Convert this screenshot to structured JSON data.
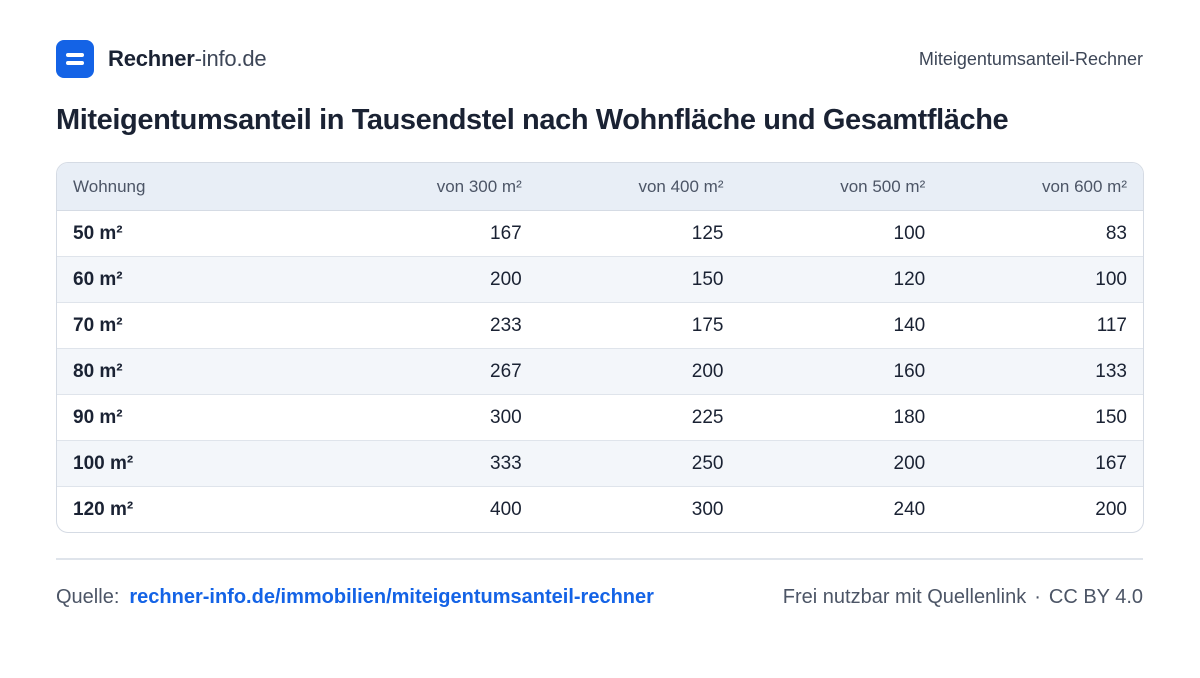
{
  "header": {
    "brand_name": "Rechner",
    "brand_tld": "-info.de",
    "page_name": "Miteigentumsanteil-Rechner",
    "logo_icon": "menu-lines-icon",
    "accent_color": "#1463e6"
  },
  "title": "Miteigentumsanteil in Tausendstel nach Wohnfläche und Gesamtfläche",
  "table": {
    "columns": [
      "Wohnung",
      "von 300 m²",
      "von 400 m²",
      "von 500 m²",
      "von 600 m²"
    ],
    "rows": [
      [
        "50 m²",
        "167",
        "125",
        "100",
        "83"
      ],
      [
        "60 m²",
        "200",
        "150",
        "120",
        "100"
      ],
      [
        "70 m²",
        "233",
        "175",
        "140",
        "117"
      ],
      [
        "80 m²",
        "267",
        "200",
        "160",
        "133"
      ],
      [
        "90 m²",
        "300",
        "225",
        "180",
        "150"
      ],
      [
        "100 m²",
        "333",
        "250",
        "200",
        "167"
      ],
      [
        "120 m²",
        "400",
        "300",
        "240",
        "200"
      ]
    ]
  },
  "footer": {
    "source_label": "Quelle:",
    "source_link": "rechner-info.de/immobilien/miteigentumsanteil-rechner",
    "license_text": "Frei nutzbar mit Quellenlink",
    "separator": "·",
    "license_name": "CC BY 4.0"
  }
}
